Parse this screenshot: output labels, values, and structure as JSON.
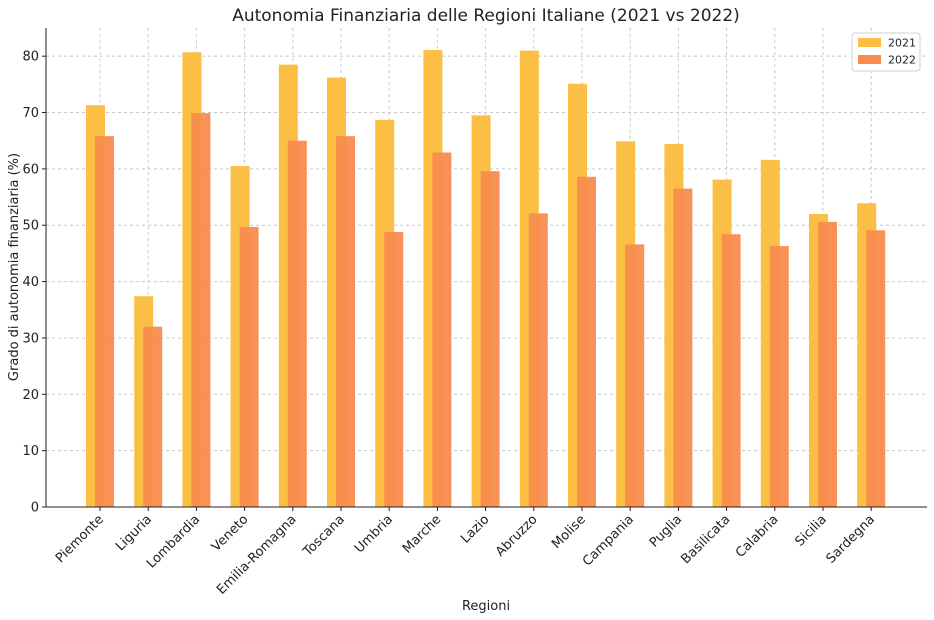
{
  "chart_data": {
    "type": "bar",
    "title": "Autonomia Finanziaria delle Regioni Italiane (2021 vs 2022)",
    "xlabel": "Regioni",
    "ylabel": "Grado di autonomia finanziaria (%)",
    "ylim": [
      0,
      85
    ],
    "yticks": [
      0,
      10,
      20,
      30,
      40,
      50,
      60,
      70,
      80
    ],
    "grid": true,
    "legend_position": "top-right",
    "categories": [
      "Piemonte",
      "Liguria",
      "Lombardia",
      "Veneto",
      "Emilia-Romagna",
      "Toscana",
      "Umbria",
      "Marche",
      "Lazio",
      "Abruzzo",
      "Molise",
      "Campania",
      "Puglia",
      "Basilicata",
      "Calabria",
      "Sicilia",
      "Sardegna"
    ],
    "series": [
      {
        "name": "2021",
        "color": "#fbbf45",
        "values": [
          71.3,
          37.4,
          80.7,
          60.5,
          78.5,
          76.2,
          68.7,
          81.1,
          69.5,
          81.0,
          75.1,
          64.9,
          64.4,
          58.1,
          61.6,
          52.0,
          53.9
        ]
      },
      {
        "name": "2022",
        "color": "#f98c4e",
        "values": [
          65.8,
          32.0,
          69.9,
          49.7,
          65.0,
          65.8,
          48.8,
          62.9,
          59.6,
          52.1,
          58.6,
          46.6,
          56.5,
          48.4,
          46.3,
          50.6,
          49.1
        ]
      }
    ]
  }
}
